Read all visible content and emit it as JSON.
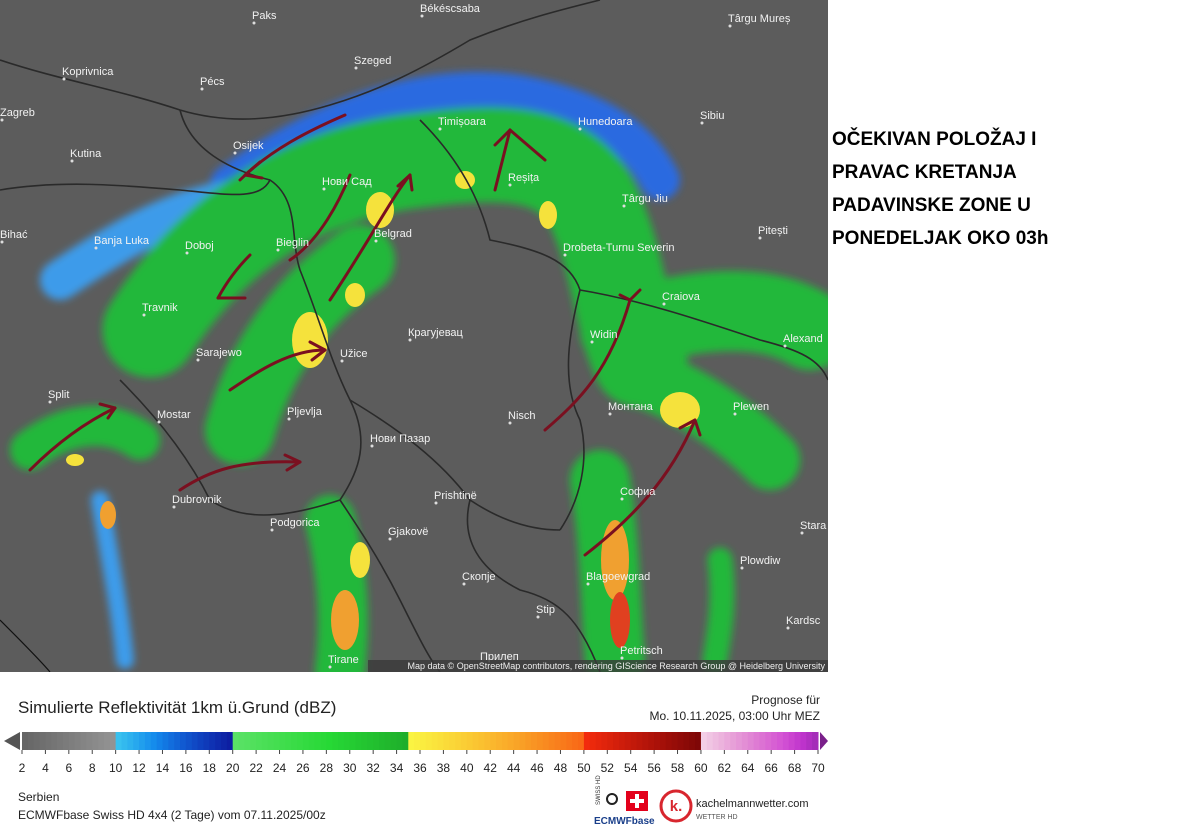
{
  "map": {
    "cities": [
      "Paks",
      "Békéscsaba",
      "Târgu Mureș",
      "Koprivnica",
      "Pécs",
      "Szeged",
      "Zagreb",
      "Timișoara",
      "Hunedoara",
      "Sibiu",
      "Kutina",
      "Osijek",
      "Нови Сад",
      "Reșița",
      "Târgu Jiu",
      "Pitești",
      "Bihać",
      "Banja Luka",
      "Doboj",
      "Bieglin",
      "Belgrad",
      "Drobeta-Turnu Severin",
      "Craiova",
      "Travnik",
      "Крагујевац",
      "Widin",
      "Alexand",
      "Sarajewo",
      "Užice",
      "Split",
      "Mostar",
      "Pljevlja",
      "Nisch",
      "Монтана",
      "Plewen",
      "Нови Пазар",
      "Dubrovnik",
      "Prishtinë",
      "Софиа",
      "Podgorica",
      "Gjakovë",
      "Stara",
      "Plowdiw",
      "Скопје",
      "Blagoewgrad",
      "Stip",
      "Kardsc",
      "Tirane",
      "Прилеп",
      "Petritsch"
    ],
    "attribution": "Map data © OpenStreetMap contributors, rendering GIScience Research Group @ Heidelberg University"
  },
  "annotation": [
    "OČEKIVAN POLOŽAJ I",
    "PRAVAC KRETANJA",
    "PADAVINSKE ZONE U",
    "PONEDELJAK OKO 03h"
  ],
  "legend": {
    "title": "Simulierte Reflektivität 1km ü.Grund (dBZ)",
    "forecast_label": "Prognose für",
    "forecast_time": "Mo. 10.11.2025, 03:00 Uhr MEZ",
    "ticks": [
      2,
      4,
      6,
      8,
      10,
      12,
      14,
      16,
      18,
      20,
      22,
      24,
      26,
      28,
      30,
      32,
      34,
      36,
      38,
      40,
      42,
      44,
      46,
      48,
      50,
      52,
      54,
      56,
      58,
      60,
      62,
      64,
      66,
      68,
      70
    ]
  },
  "footer": {
    "region": "Serbien",
    "model": "ECMWFbase Swiss HD 4x4 (2 Tage) vom 07.11.2025/00z",
    "logo_swiss": "SWISS HD",
    "logo_ecmwf": "ECMWFbase",
    "logo_k": "k.",
    "brand": "kachelmannwetter.com",
    "brand_sub": "WETTER HD"
  }
}
